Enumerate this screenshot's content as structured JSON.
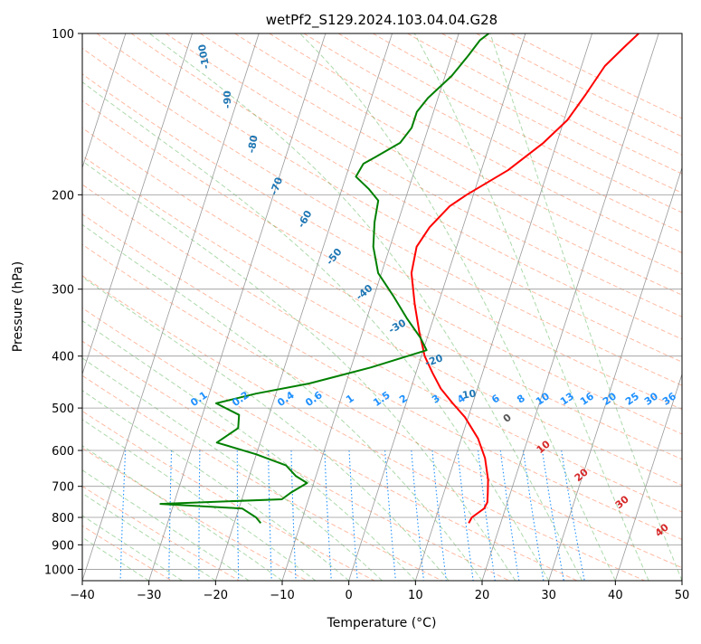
{
  "chart_data": {
    "type": "line",
    "subtype": "skew-t log-p diagram",
    "title": "wetPf2_S129.2024.103.04.04.G28",
    "xlabel": "Temperature (°C)",
    "ylabel": "Pressure (hPa)",
    "xlim": [
      -40,
      50
    ],
    "ylim": [
      1050,
      100
    ],
    "y_scale": "log",
    "grid": true,
    "x_ticks": [
      -40,
      -30,
      -20,
      -10,
      0,
      10,
      20,
      30,
      40,
      50
    ],
    "y_ticks": [
      100,
      200,
      300,
      400,
      500,
      600,
      700,
      800,
      900,
      1000
    ],
    "series": [
      {
        "color": "#ff0000",
        "points": [
          [
            15.2,
            820
          ],
          [
            15.4,
            800
          ],
          [
            16.8,
            770
          ],
          [
            17.0,
            750
          ],
          [
            16.6,
            720
          ],
          [
            16.0,
            680
          ],
          [
            14.5,
            620
          ],
          [
            12.5,
            570
          ],
          [
            9.5,
            520
          ],
          [
            7.0,
            490
          ],
          [
            4.5,
            460
          ],
          [
            2.5,
            430
          ],
          [
            0.5,
            400
          ],
          [
            -1.5,
            360
          ],
          [
            -3.5,
            320
          ],
          [
            -5.5,
            280
          ],
          [
            -6.0,
            250
          ],
          [
            -5.0,
            230
          ],
          [
            -3.0,
            210
          ],
          [
            -1.0,
            200
          ],
          [
            4.0,
            180
          ],
          [
            8.0,
            160
          ],
          [
            10.5,
            145
          ],
          [
            12.0,
            130
          ],
          [
            13.5,
            115
          ],
          [
            15.5,
            106
          ],
          [
            17.0,
            100
          ]
        ]
      },
      {
        "color": "#008000",
        "points": [
          [
            -16.0,
            820
          ],
          [
            -17.0,
            800
          ],
          [
            -19.5,
            770
          ],
          [
            -32.0,
            755
          ],
          [
            -14.0,
            740
          ],
          [
            -13.0,
            720
          ],
          [
            -11.0,
            690
          ],
          [
            -13.0,
            670
          ],
          [
            -15.0,
            640
          ],
          [
            -20.0,
            610
          ],
          [
            -26.5,
            580
          ],
          [
            -24.0,
            545
          ],
          [
            -24.5,
            515
          ],
          [
            -28.5,
            490
          ],
          [
            -23.0,
            470
          ],
          [
            -15.5,
            450
          ],
          [
            -7.0,
            420
          ],
          [
            0.5,
            390
          ],
          [
            -1.0,
            370
          ],
          [
            -4.0,
            340
          ],
          [
            -7.0,
            310
          ],
          [
            -10.5,
            280
          ],
          [
            -12.5,
            250
          ],
          [
            -13.5,
            225
          ],
          [
            -14.0,
            205
          ],
          [
            -16.0,
            195
          ],
          [
            -18.5,
            185
          ],
          [
            -18.0,
            175
          ],
          [
            -16.5,
            170
          ],
          [
            -13.5,
            160
          ],
          [
            -12.5,
            150
          ],
          [
            -12.5,
            140
          ],
          [
            -11.5,
            132
          ],
          [
            -9.0,
            120
          ],
          [
            -7.5,
            110
          ],
          [
            -6.5,
            103
          ],
          [
            -5.5,
            100
          ]
        ]
      }
    ],
    "dry_adiabat_color": "#ff6633",
    "moist_adiabat_color": "#33a02c",
    "isotherm_color": "#999999",
    "mixing_ratio_color": "#1e90ff",
    "dry_adiabat_label_color": "#1f77b4",
    "moist_adiabat_label_color": "#d62728",
    "dry_adiabat_labels": [
      "-100",
      "-90",
      "-80",
      "-70",
      "-60",
      "-50",
      "-40",
      "-30",
      "-20",
      "-10"
    ],
    "mixing_ratio_labels": [
      "0.1",
      "0.2",
      "0.4",
      "0.6",
      "1",
      "1.5",
      "2",
      "3",
      "4",
      "6",
      "8",
      "10",
      "13",
      "16",
      "20",
      "25",
      "30",
      "36"
    ],
    "moist_adiabat_labels": [
      "0",
      "10",
      "20",
      "30",
      "40"
    ]
  }
}
